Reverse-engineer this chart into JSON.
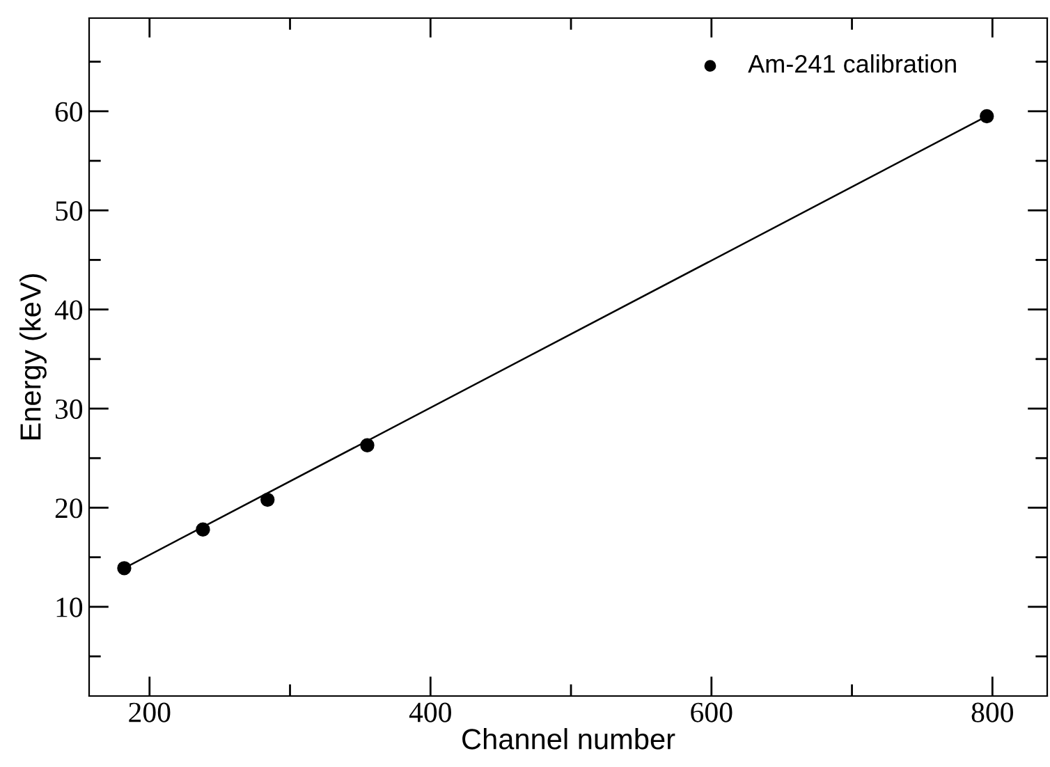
{
  "chart_data": {
    "type": "scatter",
    "xlabel": "Channel number",
    "ylabel": "Energy (keV)",
    "series": [
      {
        "name": "Am-241 calibration",
        "color": "#000000",
        "x": [
          182,
          238,
          284,
          355,
          796
        ],
        "values": [
          13.9,
          17.8,
          20.8,
          26.3,
          59.5
        ],
        "marker": "circle"
      },
      {
        "type": "line",
        "color": "#000000",
        "x": [
          182,
          796
        ],
        "values": [
          13.9,
          59.5
        ],
        "line_style": "solid"
      }
    ],
    "xlim": [
      157,
      839
    ],
    "ylim": [
      1,
      69.4
    ],
    "xticks": [
      200,
      {
        "value": 300,
        "label": null
      },
      400,
      {
        "value": 500,
        "label": null
      },
      600,
      {
        "value": 700,
        "label": null
      },
      800
    ],
    "yticks": [
      {
        "value": 5,
        "label": null
      },
      10,
      {
        "value": 15,
        "label": null
      },
      20,
      {
        "value": 25,
        "label": null
      },
      30,
      {
        "value": 35,
        "label": null
      },
      40,
      {
        "value": 45,
        "label": null
      },
      50,
      {
        "value": 55,
        "label": null
      },
      60,
      {
        "value": 65,
        "label": null
      }
    ],
    "grid": false,
    "legend": "top right"
  }
}
